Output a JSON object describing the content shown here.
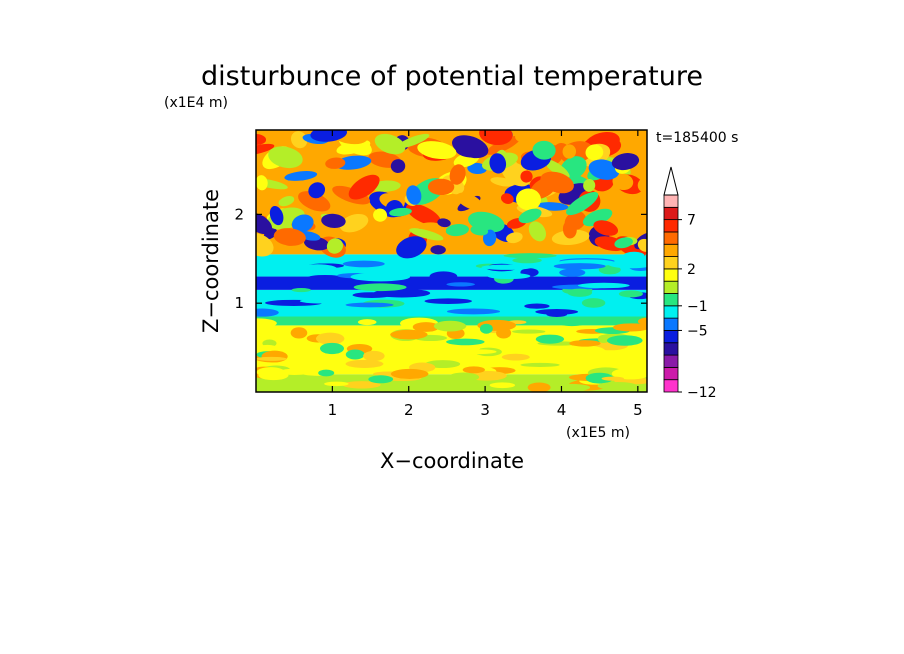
{
  "chart_data": {
    "type": "heatmap",
    "title": "disturbunce of potential temperature",
    "time_label": "t=185400 s",
    "xlabel": "X−coordinate",
    "ylabel": "Z−coordinate",
    "x_unit": "(x1E5 m)",
    "y_unit": "(x1E4 m)",
    "x_ticks": [
      "1",
      "2",
      "3",
      "4",
      "5"
    ],
    "y_ticks": [
      "1",
      "2"
    ],
    "xlim": [
      0,
      5.12
    ],
    "ylim": [
      0,
      2.95
    ],
    "colorbar": {
      "levels": [
        {
          "color": "#ff33cc"
        },
        {
          "color": "#cc1aaa"
        },
        {
          "color": "#8a1aa8"
        },
        {
          "color": "#2a10a0"
        },
        {
          "color": "#0a1ee0"
        },
        {
          "color": "#0a78ff"
        },
        {
          "color": "#00f0f0"
        },
        {
          "color": "#28e680"
        },
        {
          "color": "#b4ee28"
        },
        {
          "color": "#ffff10"
        },
        {
          "color": "#ffd21e"
        },
        {
          "color": "#ffa800"
        },
        {
          "color": "#ff6a00"
        },
        {
          "color": "#ff2a00"
        },
        {
          "color": "#dd1a1a"
        },
        {
          "color": "#ffb4b4"
        }
      ],
      "labels": [
        {
          "text": "−12",
          "at_level": 0
        },
        {
          "text": "−5",
          "at_level": 5
        },
        {
          "text": "−1",
          "at_level": 7
        },
        {
          "text": "2",
          "at_level": 10
        },
        {
          "text": "7",
          "at_level": 14
        }
      ],
      "extend": "max"
    },
    "field_bands": [
      {
        "z": [
          0.0,
          0.2
        ],
        "dominant": "#b4ee28"
      },
      {
        "z": [
          0.2,
          0.75
        ],
        "dominant": "#ffff10"
      },
      {
        "z": [
          0.75,
          0.85
        ],
        "dominant": "#28e680"
      },
      {
        "z": [
          0.85,
          1.15
        ],
        "dominant": "#00f0f0"
      },
      {
        "z": [
          1.15,
          1.3
        ],
        "dominant": "#0a1ee0"
      },
      {
        "z": [
          1.3,
          1.55
        ],
        "dominant": "#00f0f0"
      },
      {
        "z": [
          1.55,
          2.95
        ],
        "dominant": "#ffa800"
      }
    ]
  }
}
